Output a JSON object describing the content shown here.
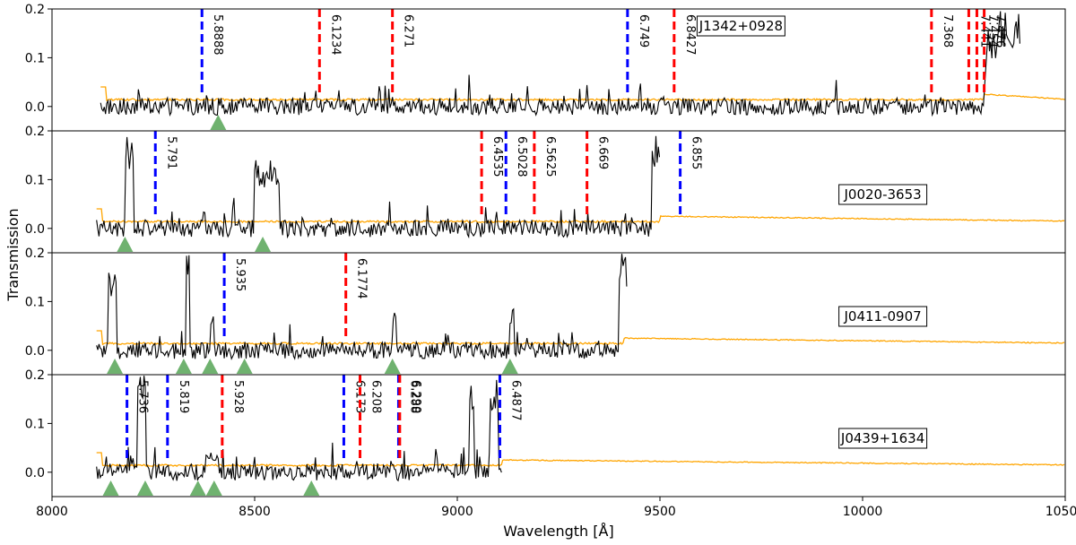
{
  "chart_data": {
    "type": "line",
    "xlabel": "Wavelength [Å]",
    "ylabel": "Transmission",
    "xlim": [
      8000,
      10500
    ],
    "ylim": [
      -0.05,
      0.2
    ],
    "x_ticks": [
      "8000",
      "8500",
      "9000",
      "9500",
      "10000",
      "10500"
    ],
    "y_ticks": [
      "0.0",
      "0.1",
      "0.2"
    ],
    "colors": {
      "transmission": "#000000",
      "noise": "#FFA500",
      "metal_red": "#FF0000",
      "metal_blue": "#0000FF",
      "marker": "#6FB26F"
    },
    "panels": [
      {
        "quasar": "J1342+0928",
        "wave_start": 8120,
        "wave_end": 10500,
        "spike_regions": [
          [
            10310,
            10330,
            0.16
          ],
          [
            10340,
            10360,
            0.2
          ],
          [
            10370,
            10390,
            0.2
          ]
        ],
        "ly_break": 10300,
        "absorbers": [
          {
            "z": "5.8888",
            "wave": 8370,
            "color": "blue"
          },
          {
            "z": "6.1234",
            "wave": 8660,
            "color": "red"
          },
          {
            "z": "6.271",
            "wave": 8840,
            "color": "red"
          },
          {
            "z": "6.749",
            "wave": 9420,
            "color": "blue"
          },
          {
            "z": "6.8427",
            "wave": 9535,
            "color": "red"
          },
          {
            "z": "7.368",
            "wave": 10170,
            "color": "red"
          },
          {
            "z": "7.441",
            "wave": 10262,
            "color": "red"
          },
          {
            "z": "7.454",
            "wave": 10282,
            "color": "red"
          },
          {
            "z": "7.476",
            "wave": 10300,
            "color": "red"
          }
        ],
        "markers": [
          8410
        ]
      },
      {
        "quasar": "J0020-3653",
        "wave_start": 8110,
        "wave_end": 10500,
        "spike_regions": [
          [
            8180,
            8200,
            0.19
          ],
          [
            8500,
            8560,
            0.14
          ],
          [
            9480,
            9500,
            0.2
          ]
        ],
        "ly_break": 9500,
        "absorbers": [
          {
            "z": "5.791",
            "wave": 8255,
            "color": "blue"
          },
          {
            "z": "6.4535",
            "wave": 9060,
            "color": "red"
          },
          {
            "z": "6.5028",
            "wave": 9120,
            "color": "blue"
          },
          {
            "z": "6.5625",
            "wave": 9190,
            "color": "red"
          },
          {
            "z": "6.669",
            "wave": 9320,
            "color": "red"
          },
          {
            "z": "6.855",
            "wave": 9550,
            "color": "blue"
          }
        ],
        "markers": [
          8180,
          8520
        ]
      },
      {
        "quasar": "J0411-0907",
        "wave_start": 8110,
        "wave_end": 10500,
        "spike_regions": [
          [
            8140,
            8160,
            0.16
          ],
          [
            8330,
            8340,
            0.2
          ],
          [
            8390,
            8400,
            0.08
          ],
          [
            8840,
            8850,
            0.08
          ],
          [
            9130,
            9140,
            0.09
          ],
          [
            9400,
            9420,
            0.2
          ]
        ],
        "ly_break": 9410,
        "absorbers": [
          {
            "z": "5.935",
            "wave": 8425,
            "color": "blue"
          },
          {
            "z": "6.1774",
            "wave": 8725,
            "color": "red"
          }
        ],
        "markers": [
          8155,
          8325,
          8390,
          8475,
          8840,
          9130
        ]
      },
      {
        "quasar": "J0439+1634",
        "wave_start": 8110,
        "wave_end": 10500,
        "spike_regions": [
          [
            8210,
            8230,
            0.2
          ],
          [
            8380,
            8410,
            0.04
          ],
          [
            9030,
            9040,
            0.2
          ],
          [
            9080,
            9100,
            0.2
          ]
        ],
        "ly_break": 9110,
        "absorbers": [
          {
            "z": "5.736",
            "wave": 8185,
            "color": "blue"
          },
          {
            "z": "5.819",
            "wave": 8285,
            "color": "blue"
          },
          {
            "z": "5.928",
            "wave": 8420,
            "color": "red"
          },
          {
            "z": "6.173",
            "wave": 8720,
            "color": "blue"
          },
          {
            "z": "6.208",
            "wave": 8760,
            "color": "red"
          },
          {
            "z": "6.288",
            "wave": 8855,
            "color": "blue"
          },
          {
            "z": "6.290",
            "wave": 8858,
            "color": "red"
          },
          {
            "z": "6.4877",
            "wave": 9105,
            "color": "blue"
          }
        ],
        "markers": [
          8145,
          8230,
          8360,
          8400,
          8640
        ]
      }
    ]
  }
}
